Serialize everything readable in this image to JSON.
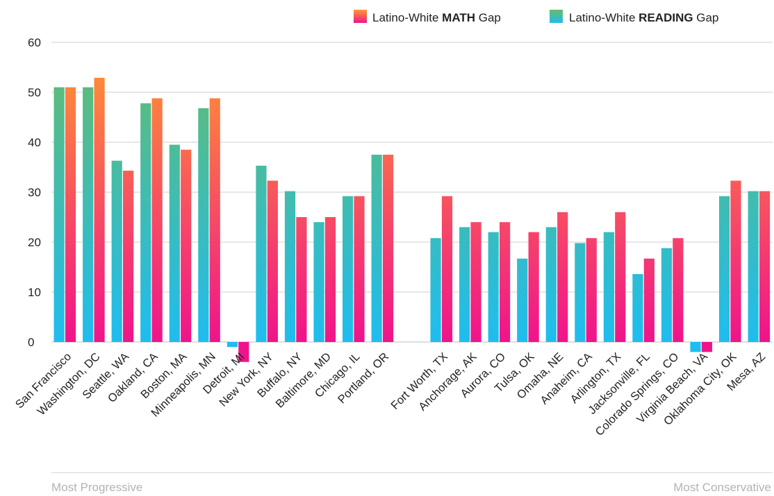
{
  "chart_data": {
    "type": "bar",
    "title": "",
    "xlabel": "",
    "ylabel": "",
    "ylim": [
      0,
      60
    ],
    "yticks": [
      0,
      10,
      20,
      30,
      40,
      50,
      60
    ],
    "grid": true,
    "legend_position": "top-right",
    "legend": [
      {
        "prefix": "Latino-White ",
        "bold": "MATH",
        "suffix": " Gap",
        "series": "math"
      },
      {
        "prefix": "Latino-White ",
        "bold": "READING",
        "suffix": " Gap",
        "series": "reading"
      }
    ],
    "colors": {
      "reading_top": "#66bb6a",
      "reading_bottom": "#1ebdf0",
      "math_top": "#ff9a2e",
      "math_bottom": "#f0138c"
    },
    "groups": [
      {
        "name": "Most Progressive",
        "categories": [
          "San Francisco",
          "Washington, DC",
          "Seattle, WA",
          "Oakland, CA",
          "Boston, MA",
          "Minneapolis, MN",
          "Detroit, MI",
          "New York, NY",
          "Buffalo, NY",
          "Baltimore, MD",
          "Chicago, IL",
          "Portland, OR"
        ],
        "reading": [
          51,
          51,
          36.3,
          47.8,
          39.5,
          46.8,
          -1,
          35.3,
          30.2,
          24,
          29.2,
          37.5
        ],
        "math": [
          51,
          52.9,
          34.3,
          48.8,
          38.5,
          48.8,
          -4,
          32.3,
          25,
          25,
          29.2,
          37.5
        ]
      },
      {
        "name": "Most Conservative",
        "categories": [
          "Fort Worth, TX",
          "Anchorage, AK",
          "Aurora, CO",
          "Tulsa, OK",
          "Omaha, NE",
          "Anaheim, CA",
          "Arlington, TX",
          "Jacksonville, FL",
          "Colorado Springs, CO",
          "Virginia Beach, VA",
          "Oklahoma City, OK",
          "Mesa, AZ"
        ],
        "reading": [
          20.8,
          23,
          22,
          16.7,
          23,
          19.8,
          22,
          13.6,
          18.8,
          -2,
          29.2,
          30.2
        ],
        "math": [
          29.2,
          24,
          24,
          22,
          26,
          20.8,
          26,
          16.7,
          20.8,
          -2,
          32.3,
          30.2
        ]
      }
    ]
  },
  "footer": {
    "left": "Most Progressive",
    "right": "Most Conservative"
  }
}
